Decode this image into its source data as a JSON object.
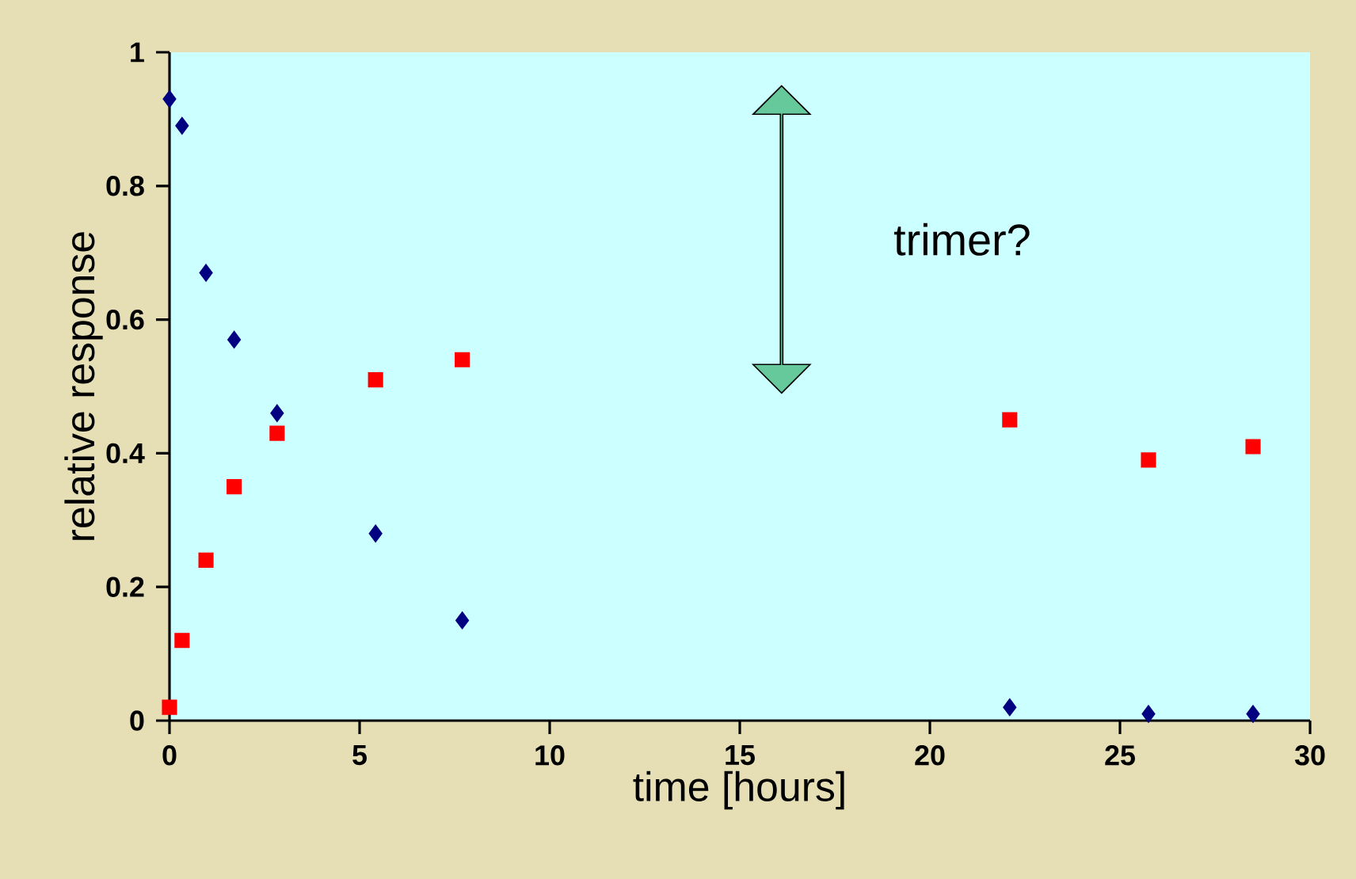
{
  "chart_data": {
    "type": "scatter",
    "xlabel": "time [hours]",
    "ylabel": "relative response",
    "annotations": [
      "trimer?"
    ],
    "xlim": [
      0,
      30
    ],
    "ylim": [
      0,
      1
    ],
    "xticks": [
      0,
      5,
      10,
      15,
      20,
      25,
      30
    ],
    "yticks": [
      0,
      0.2,
      0.4,
      0.6,
      0.8,
      1
    ],
    "grid": false,
    "series": [
      {
        "color": "#000080",
        "marker": "diamond",
        "x": [
          0,
          0.33,
          0.96,
          1.7,
          2.83,
          5.42,
          7.7,
          22.1,
          25.75,
          28.5
        ],
        "values": [
          0.93,
          0.89,
          0.67,
          0.57,
          0.46,
          0.28,
          0.15,
          0.02,
          0.01,
          0.01
        ]
      },
      {
        "color": "#ff0000",
        "marker": "square",
        "x": [
          0,
          0.33,
          0.96,
          1.7,
          2.83,
          5.42,
          7.7,
          22.1,
          25.75,
          28.5
        ],
        "values": [
          0.02,
          0.12,
          0.24,
          0.35,
          0.43,
          0.51,
          0.54,
          0.45,
          0.39,
          0.41
        ]
      }
    ]
  }
}
